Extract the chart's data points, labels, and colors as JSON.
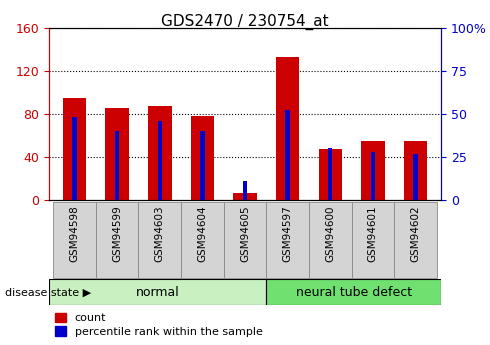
{
  "title": "GDS2470 / 230754_at",
  "categories": [
    "GSM94598",
    "GSM94599",
    "GSM94603",
    "GSM94604",
    "GSM94605",
    "GSM94597",
    "GSM94600",
    "GSM94601",
    "GSM94602"
  ],
  "count_values": [
    95,
    85,
    87,
    78,
    7,
    133,
    47,
    55,
    55
  ],
  "percentile_values": [
    48,
    40,
    46,
    40,
    11,
    52,
    30,
    28,
    27
  ],
  "normal_indices": [
    0,
    1,
    2,
    3,
    4
  ],
  "defect_indices": [
    5,
    6,
    7,
    8
  ],
  "bar_color_red": "#CC0000",
  "bar_color_blue": "#0000CC",
  "left_ylim": [
    0,
    160
  ],
  "right_ylim": [
    0,
    100
  ],
  "left_yticks": [
    0,
    40,
    80,
    120,
    160
  ],
  "right_yticks": [
    0,
    25,
    50,
    75,
    100
  ],
  "right_yticklabels": [
    "0",
    "25",
    "50",
    "75",
    "100%"
  ],
  "normal_label": "normal",
  "defect_label": "neural tube defect",
  "disease_state_label": "disease state",
  "legend_count": "count",
  "legend_percentile": "percentile rank within the sample",
  "normal_bg": "#c8f0c0",
  "defect_bg": "#70e070",
  "tick_bg": "#d4d4d4",
  "bar_width": 0.55,
  "blue_bar_width": 0.1,
  "scale_factor": 1.6
}
